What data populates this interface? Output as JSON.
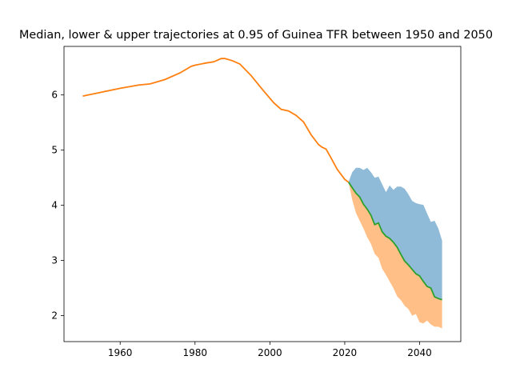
{
  "chart_data": {
    "type": "line",
    "title": "Median, lower & upper trajectories at 0.95 of Guinea TFR between 1950 and 2050",
    "xlabel": "",
    "ylabel": "",
    "xlim": [
      1945,
      2051
    ],
    "ylim": [
      1.53,
      6.88
    ],
    "xticks": [
      1960,
      1980,
      2000,
      2020,
      2040
    ],
    "yticks": [
      2,
      3,
      4,
      5,
      6
    ],
    "grid": false,
    "colors": {
      "upper_band": "#8fbbd9",
      "lower_band": "#ffbf86",
      "median": "#2ca02c",
      "history": "#ff7f0e"
    },
    "series": [
      {
        "role": "history",
        "x": [
          1950,
          1955,
          1960,
          1965,
          1968,
          1972,
          1976,
          1979,
          1980,
          1983,
          1985,
          1987,
          1988,
          1990,
          1992,
          1995,
          1998,
          2001,
          2003,
          2005,
          2007,
          2009,
          2011,
          2013,
          2014,
          2015,
          2016,
          2018,
          2020,
          2021
        ],
        "values": [
          5.98,
          6.05,
          6.12,
          6.18,
          6.2,
          6.28,
          6.4,
          6.52,
          6.54,
          6.58,
          6.6,
          6.66,
          6.66,
          6.62,
          6.56,
          6.35,
          6.1,
          5.86,
          5.74,
          5.71,
          5.63,
          5.51,
          5.28,
          5.1,
          5.05,
          5.02,
          4.9,
          4.65,
          4.47,
          4.42
        ]
      },
      {
        "role": "median",
        "x": [
          2021,
          2022,
          2023,
          2024,
          2025,
          2026,
          2027,
          2028,
          2029,
          2030,
          2031,
          2032,
          2033,
          2034,
          2035,
          2036,
          2037,
          2038,
          2039,
          2040,
          2041,
          2042,
          2043,
          2044,
          2045,
          2046
        ],
        "values": [
          4.42,
          4.32,
          4.22,
          4.15,
          4.02,
          3.93,
          3.82,
          3.65,
          3.68,
          3.52,
          3.44,
          3.4,
          3.33,
          3.24,
          3.11,
          2.99,
          2.92,
          2.84,
          2.76,
          2.72,
          2.62,
          2.53,
          2.5,
          2.34,
          2.31,
          2.29
        ]
      },
      {
        "role": "upper",
        "x": [
          2021,
          2022,
          2023,
          2024,
          2025,
          2026,
          2027,
          2028,
          2029,
          2030,
          2031,
          2032,
          2033,
          2034,
          2035,
          2036,
          2037,
          2038,
          2039,
          2040,
          2041,
          2042,
          2043,
          2044,
          2045,
          2046
        ],
        "values": [
          4.42,
          4.6,
          4.68,
          4.68,
          4.64,
          4.68,
          4.6,
          4.5,
          4.52,
          4.38,
          4.24,
          4.36,
          4.28,
          4.34,
          4.34,
          4.3,
          4.2,
          4.08,
          4.04,
          4.02,
          4.01,
          3.85,
          3.7,
          3.72,
          3.58,
          3.36
        ]
      },
      {
        "role": "lower",
        "x": [
          2021,
          2022,
          2023,
          2024,
          2025,
          2026,
          2027,
          2028,
          2029,
          2030,
          2031,
          2032,
          2033,
          2034,
          2035,
          2036,
          2037,
          2038,
          2039,
          2040,
          2041,
          2042,
          2043,
          2044,
          2045,
          2046
        ],
        "values": [
          4.42,
          4.1,
          3.86,
          3.72,
          3.58,
          3.42,
          3.3,
          3.12,
          3.05,
          2.85,
          2.74,
          2.62,
          2.5,
          2.35,
          2.28,
          2.18,
          2.12,
          2.0,
          2.03,
          1.88,
          1.86,
          1.91,
          1.84,
          1.8,
          1.8,
          1.77
        ]
      }
    ]
  }
}
